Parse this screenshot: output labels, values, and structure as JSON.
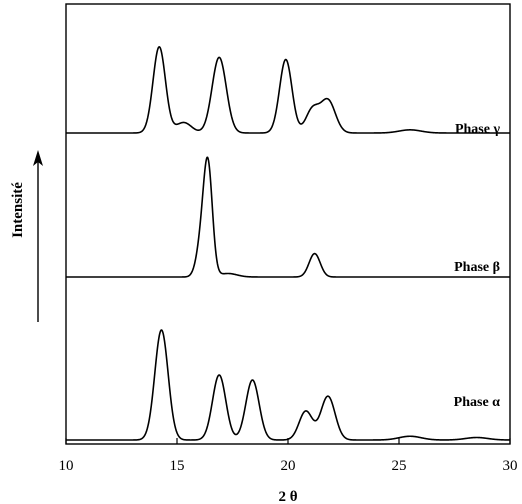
{
  "chart_data": {
    "type": "line",
    "xlabel": "2 θ",
    "ylabel": "Intensité",
    "xlim": [
      10,
      30
    ],
    "xticks": [
      10,
      15,
      20,
      25,
      30
    ],
    "grid": false,
    "series": [
      {
        "name": "Phase γ",
        "peaks": [
          {
            "x": 14.2,
            "h": 0.82,
            "w": 0.28
          },
          {
            "x": 15.3,
            "h": 0.1,
            "w": 0.35
          },
          {
            "x": 16.9,
            "h": 0.72,
            "w": 0.32
          },
          {
            "x": 19.9,
            "h": 0.7,
            "w": 0.28
          },
          {
            "x": 21.1,
            "h": 0.22,
            "w": 0.3
          },
          {
            "x": 21.8,
            "h": 0.31,
            "w": 0.33
          },
          {
            "x": 25.5,
            "h": 0.03,
            "w": 0.5
          }
        ]
      },
      {
        "name": "Phase β",
        "peaks": [
          {
            "x": 16.1,
            "h": 0.28,
            "w": 0.22
          },
          {
            "x": 16.4,
            "h": 0.9,
            "w": 0.2
          },
          {
            "x": 17.3,
            "h": 0.03,
            "w": 0.4
          },
          {
            "x": 21.2,
            "h": 0.2,
            "w": 0.25
          }
        ]
      },
      {
        "name": "Phase α",
        "peaks": [
          {
            "x": 14.3,
            "h": 0.88,
            "w": 0.3
          },
          {
            "x": 16.9,
            "h": 0.52,
            "w": 0.3
          },
          {
            "x": 18.4,
            "h": 0.48,
            "w": 0.3
          },
          {
            "x": 20.8,
            "h": 0.23,
            "w": 0.3
          },
          {
            "x": 21.8,
            "h": 0.35,
            "w": 0.32
          },
          {
            "x": 25.5,
            "h": 0.03,
            "w": 0.5
          },
          {
            "x": 28.5,
            "h": 0.02,
            "w": 0.5
          }
        ]
      }
    ]
  }
}
